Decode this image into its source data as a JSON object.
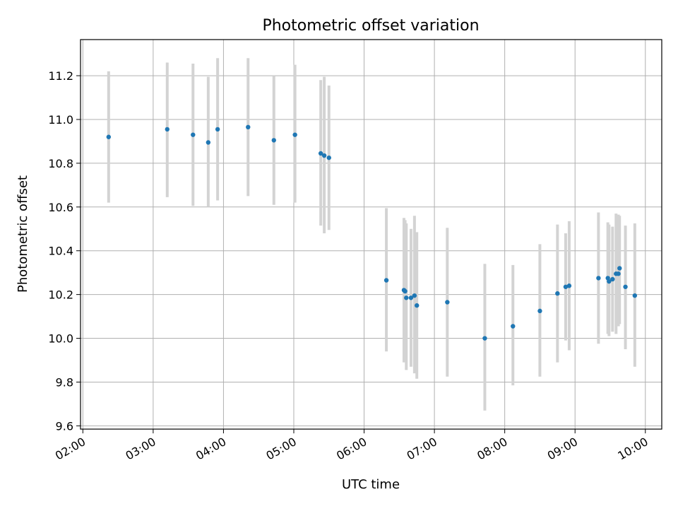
{
  "chart_data": {
    "type": "scatter",
    "title": "Photometric offset variation",
    "xlabel": "UTC time",
    "ylabel": "Photometric offset",
    "xlim": [
      "01:58",
      "10:14"
    ],
    "ylim": [
      9.585,
      11.365
    ],
    "grid": true,
    "x_ticks": [
      "02:00",
      "03:00",
      "04:00",
      "05:00",
      "06:00",
      "07:00",
      "08:00",
      "09:00",
      "10:00"
    ],
    "y_ticks": [
      9.6,
      9.8,
      10.0,
      10.2,
      10.4,
      10.6,
      10.8,
      11.0,
      11.2
    ],
    "y_tick_labels": [
      "9.6",
      "9.8",
      "10.0",
      "10.2",
      "10.4",
      "10.6",
      "10.8",
      "11.0",
      "11.2"
    ],
    "colors": {
      "point": "#1f77b4",
      "errorbar": "#d3d3d3",
      "grid": "#b0b0b0"
    },
    "series": [
      {
        "points": [
          {
            "x": "02:22",
            "y": 10.92,
            "ylow": 10.62,
            "yhigh": 11.22
          },
          {
            "x": "03:12",
            "y": 10.955,
            "ylow": 10.645,
            "yhigh": 11.26
          },
          {
            "x": "03:34",
            "y": 10.93,
            "ylow": 10.605,
            "yhigh": 11.255
          },
          {
            "x": "03:47",
            "y": 10.895,
            "ylow": 10.6,
            "yhigh": 11.195
          },
          {
            "x": "03:55",
            "y": 10.955,
            "ylow": 10.63,
            "yhigh": 11.28
          },
          {
            "x": "04:21",
            "y": 10.965,
            "ylow": 10.65,
            "yhigh": 11.28
          },
          {
            "x": "04:43",
            "y": 10.905,
            "ylow": 10.61,
            "yhigh": 11.2
          },
          {
            "x": "05:01",
            "y": 10.93,
            "ylow": 10.62,
            "yhigh": 11.25
          },
          {
            "x": "05:23",
            "y": 10.845,
            "ylow": 10.515,
            "yhigh": 11.18
          },
          {
            "x": "05:26",
            "y": 10.835,
            "ylow": 10.48,
            "yhigh": 11.195
          },
          {
            "x": "05:30",
            "y": 10.825,
            "ylow": 10.495,
            "yhigh": 11.155
          },
          {
            "x": "06:19",
            "y": 10.265,
            "ylow": 9.94,
            "yhigh": 10.595
          },
          {
            "x": "06:34",
            "y": 10.22,
            "ylow": 9.89,
            "yhigh": 10.55
          },
          {
            "x": "06:35",
            "y": 10.215,
            "ylow": 9.9,
            "yhigh": 10.54
          },
          {
            "x": "06:36",
            "y": 10.185,
            "ylow": 9.855,
            "yhigh": 10.525
          },
          {
            "x": "06:40",
            "y": 10.185,
            "ylow": 9.87,
            "yhigh": 10.5
          },
          {
            "x": "06:43",
            "y": 10.195,
            "ylow": 9.84,
            "yhigh": 10.56
          },
          {
            "x": "06:45",
            "y": 10.15,
            "ylow": 9.815,
            "yhigh": 10.485
          },
          {
            "x": "07:11",
            "y": 10.165,
            "ylow": 9.825,
            "yhigh": 10.505
          },
          {
            "x": "07:43",
            "y": 10.0,
            "ylow": 9.67,
            "yhigh": 10.34
          },
          {
            "x": "08:07",
            "y": 10.055,
            "ylow": 9.785,
            "yhigh": 10.335
          },
          {
            "x": "08:30",
            "y": 10.125,
            "ylow": 9.825,
            "yhigh": 10.43
          },
          {
            "x": "08:45",
            "y": 10.205,
            "ylow": 9.89,
            "yhigh": 10.52
          },
          {
            "x": "08:52",
            "y": 10.235,
            "ylow": 9.99,
            "yhigh": 10.48
          },
          {
            "x": "08:55",
            "y": 10.24,
            "ylow": 9.945,
            "yhigh": 10.535
          },
          {
            "x": "09:20",
            "y": 10.275,
            "ylow": 9.975,
            "yhigh": 10.575
          },
          {
            "x": "09:28",
            "y": 10.275,
            "ylow": 10.02,
            "yhigh": 10.53
          },
          {
            "x": "09:29",
            "y": 10.26,
            "ylow": 10.01,
            "yhigh": 10.52
          },
          {
            "x": "09:32",
            "y": 10.27,
            "ylow": 10.03,
            "yhigh": 10.51
          },
          {
            "x": "09:35",
            "y": 10.295,
            "ylow": 10.02,
            "yhigh": 10.57
          },
          {
            "x": "09:37",
            "y": 10.295,
            "ylow": 10.055,
            "yhigh": 10.565
          },
          {
            "x": "09:38",
            "y": 10.32,
            "ylow": 10.065,
            "yhigh": 10.56
          },
          {
            "x": "09:43",
            "y": 10.235,
            "ylow": 9.95,
            "yhigh": 10.515
          },
          {
            "x": "09:51",
            "y": 10.195,
            "ylow": 9.87,
            "yhigh": 10.525
          }
        ]
      }
    ]
  }
}
